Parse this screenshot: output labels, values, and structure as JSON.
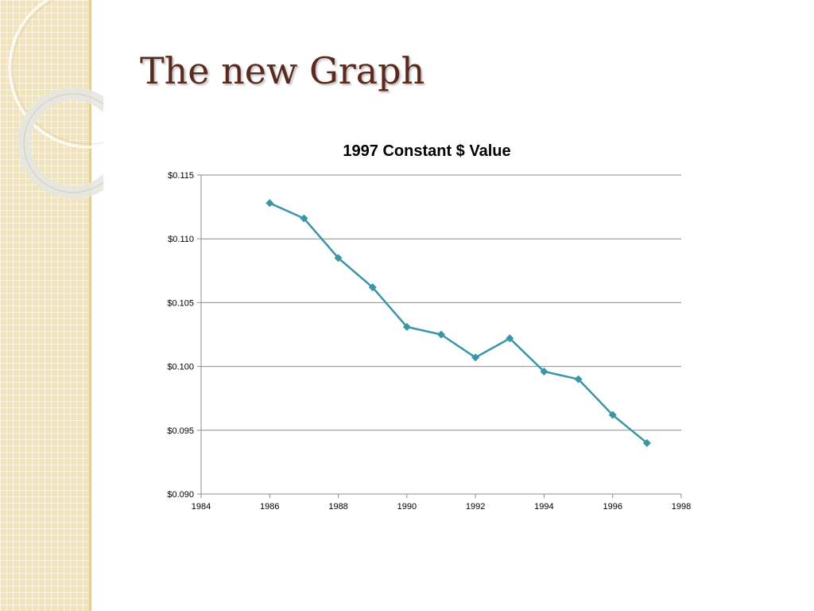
{
  "slide": {
    "title": "The new Graph"
  },
  "colors": {
    "series": "#3a96a6",
    "title": "#5b2a1c",
    "strip": "#f3e4b8"
  },
  "chart_data": {
    "type": "line",
    "title": "1997 Constant $ Value",
    "xlabel": "",
    "ylabel": "",
    "xlim": [
      1984,
      1998
    ],
    "ylim": [
      0.09,
      0.115
    ],
    "x_ticks": [
      "1984",
      "1986",
      "1988",
      "1990",
      "1992",
      "1994",
      "1996",
      "1998"
    ],
    "y_ticks": [
      "$0.090",
      "$0.095",
      "$0.100",
      "$0.105",
      "$0.110",
      "$0.115"
    ],
    "grid": "horizontal",
    "marker": "diamond",
    "series": [
      {
        "x": [
          1986,
          1987,
          1988,
          1989,
          1990,
          1991,
          1992,
          1993,
          1994,
          1995,
          1996,
          1997
        ],
        "y": [
          0.1128,
          0.1116,
          0.1085,
          0.1062,
          0.1031,
          0.1025,
          0.1007,
          0.1022,
          0.0996,
          0.099,
          0.0962,
          0.094
        ]
      }
    ]
  }
}
